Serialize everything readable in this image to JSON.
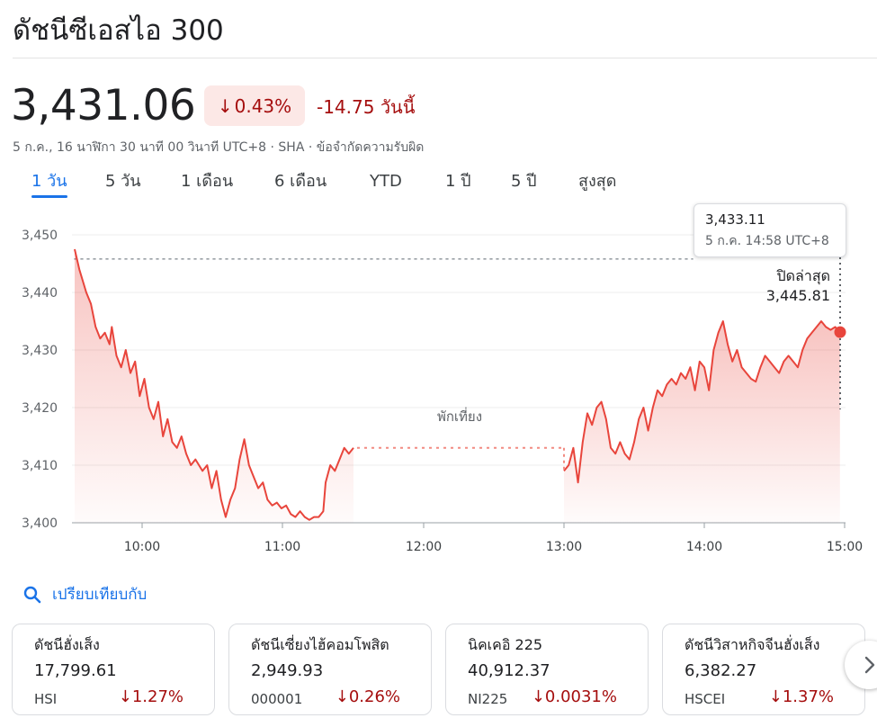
{
  "header": {
    "title": "ดัชนีซีเอสไอ 300",
    "price": "3,431.06",
    "change_percent": "0.43%",
    "change_abs": "-14.75 วันนี้",
    "meta": "5 ก.ค., 16 นาฬิกา 30 นาที 00 วินาที UTC+8 · SHA · ข้อจำกัดความรับผิด"
  },
  "tabs": [
    {
      "label": "1 วัน",
      "active": true
    },
    {
      "label": "5 วัน"
    },
    {
      "label": "1 เดือน"
    },
    {
      "label": "6 เดือน"
    },
    {
      "label": "YTD"
    },
    {
      "label": "1 ปี"
    },
    {
      "label": "5 ปี"
    },
    {
      "label": "สูงสุด"
    }
  ],
  "tooltip": {
    "value": "3,433.11",
    "time": "5 ก.ค. 14:58 UTC+8"
  },
  "prev_close": {
    "label": "ปิดล่าสุด",
    "value": "3,445.81"
  },
  "colors": {
    "negative": "#a50e0e",
    "line": "#e8453c",
    "accent": "#1a73e8"
  },
  "chart_data": {
    "type": "area",
    "ylim": [
      3400,
      3450
    ],
    "y_ticks": [
      "3,450",
      "3,440",
      "3,430",
      "3,420",
      "3,410",
      "3,400"
    ],
    "x_ticks": [
      "10:00",
      "11:00",
      "12:00",
      "13:00",
      "14:00",
      "15:00"
    ],
    "lunch_label": "พักเที่ยง",
    "prev_close": 3445.81,
    "morning": [
      [
        "9:30",
        3447.5
      ],
      [
        "9:32",
        3444
      ],
      [
        "9:35",
        3440
      ],
      [
        "9:37",
        3438
      ],
      [
        "9:39",
        3434
      ],
      [
        "9:41",
        3432
      ],
      [
        "9:43",
        3433
      ],
      [
        "9:45",
        3431
      ],
      [
        "9:46",
        3434
      ],
      [
        "9:48",
        3429
      ],
      [
        "9:50",
        3427
      ],
      [
        "9:52",
        3430
      ],
      [
        "9:54",
        3426
      ],
      [
        "9:56",
        3428
      ],
      [
        "9:58",
        3422
      ],
      [
        "10:00",
        3425
      ],
      [
        "10:02",
        3420
      ],
      [
        "10:04",
        3418
      ],
      [
        "10:06",
        3421
      ],
      [
        "10:08",
        3415
      ],
      [
        "10:10",
        3418
      ],
      [
        "10:12",
        3414
      ],
      [
        "10:14",
        3413
      ],
      [
        "10:16",
        3415
      ],
      [
        "10:18",
        3412
      ],
      [
        "10:20",
        3410
      ],
      [
        "10:22",
        3411
      ],
      [
        "10:25",
        3409
      ],
      [
        "10:27",
        3410
      ],
      [
        "10:29",
        3406
      ],
      [
        "10:31",
        3409
      ],
      [
        "10:33",
        3404
      ],
      [
        "10:35",
        3401
      ],
      [
        "10:37",
        3404
      ],
      [
        "10:39",
        3406
      ],
      [
        "10:41",
        3411
      ],
      [
        "10:43",
        3414.5
      ],
      [
        "10:45",
        3410
      ],
      [
        "10:47",
        3408
      ],
      [
        "10:49",
        3406
      ],
      [
        "10:51",
        3407
      ],
      [
        "10:53",
        3404
      ],
      [
        "10:55",
        3403
      ],
      [
        "10:57",
        3403.5
      ],
      [
        "10:59",
        3402.5
      ],
      [
        "11:01",
        3403
      ],
      [
        "11:03",
        3401.5
      ],
      [
        "11:05",
        3401
      ],
      [
        "11:07",
        3402
      ],
      [
        "11:09",
        3401
      ],
      [
        "11:11",
        3400.5
      ],
      [
        "11:13",
        3401
      ],
      [
        "11:15",
        3401
      ],
      [
        "11:17",
        3402
      ],
      [
        "11:18",
        3407
      ],
      [
        "11:20",
        3410
      ],
      [
        "11:22",
        3409
      ],
      [
        "11:24",
        3411
      ],
      [
        "11:26",
        3413
      ],
      [
        "11:28",
        3412
      ],
      [
        "11:30",
        3413
      ]
    ],
    "afternoon": [
      [
        "13:00",
        3409
      ],
      [
        "13:02",
        3410
      ],
      [
        "13:04",
        3413
      ],
      [
        "13:06",
        3407
      ],
      [
        "13:08",
        3414
      ],
      [
        "13:10",
        3419
      ],
      [
        "13:12",
        3417
      ],
      [
        "13:14",
        3420
      ],
      [
        "13:16",
        3421
      ],
      [
        "13:18",
        3418
      ],
      [
        "13:20",
        3413
      ],
      [
        "13:22",
        3412
      ],
      [
        "13:24",
        3414
      ],
      [
        "13:26",
        3412
      ],
      [
        "13:28",
        3411
      ],
      [
        "13:30",
        3414
      ],
      [
        "13:32",
        3418
      ],
      [
        "13:34",
        3420
      ],
      [
        "13:36",
        3416
      ],
      [
        "13:38",
        3420
      ],
      [
        "13:40",
        3423
      ],
      [
        "13:42",
        3422
      ],
      [
        "13:44",
        3424
      ],
      [
        "13:46",
        3425
      ],
      [
        "13:48",
        3424
      ],
      [
        "13:50",
        3426
      ],
      [
        "13:52",
        3425
      ],
      [
        "13:54",
        3427
      ],
      [
        "13:56",
        3423
      ],
      [
        "13:58",
        3428
      ],
      [
        "14:00",
        3427
      ],
      [
        "14:02",
        3423
      ],
      [
        "14:04",
        3430
      ],
      [
        "14:06",
        3433
      ],
      [
        "14:08",
        3435
      ],
      [
        "14:10",
        3431
      ],
      [
        "14:12",
        3428
      ],
      [
        "14:14",
        3430
      ],
      [
        "14:16",
        3427
      ],
      [
        "14:18",
        3426
      ],
      [
        "14:20",
        3425
      ],
      [
        "14:22",
        3424.5
      ],
      [
        "14:24",
        3427
      ],
      [
        "14:26",
        3429
      ],
      [
        "14:28",
        3428
      ],
      [
        "14:30",
        3427
      ],
      [
        "14:32",
        3426
      ],
      [
        "14:34",
        3428
      ],
      [
        "14:36",
        3429
      ],
      [
        "14:38",
        3428
      ],
      [
        "14:40",
        3427
      ],
      [
        "14:42",
        3430
      ],
      [
        "14:44",
        3432
      ],
      [
        "14:46",
        3433
      ],
      [
        "14:48",
        3434
      ],
      [
        "14:50",
        3435
      ],
      [
        "14:52",
        3434
      ],
      [
        "14:54",
        3433.5
      ],
      [
        "14:56",
        3434
      ],
      [
        "14:58",
        3433.11
      ]
    ]
  },
  "compare": {
    "label": "เปรียบเทียบกับ"
  },
  "compare_cards": [
    {
      "name": "ดัชนีฮั่งเส็ง",
      "price": "17,799.61",
      "ticker": "HSI",
      "change": "1.27%"
    },
    {
      "name": "ดัชนีเซี่ยงไฮ้คอมโพสิต",
      "price": "2,949.93",
      "ticker": "000001",
      "change": "0.26%"
    },
    {
      "name": "นิคเคอิ 225",
      "price": "40,912.37",
      "ticker": "NI225",
      "change": "0.0031%"
    },
    {
      "name": "ดัชนีวิสาหกิจจีนฮั่งเส็ง",
      "price": "6,382.27",
      "ticker": "HSCEI",
      "change": "1.37%"
    }
  ]
}
